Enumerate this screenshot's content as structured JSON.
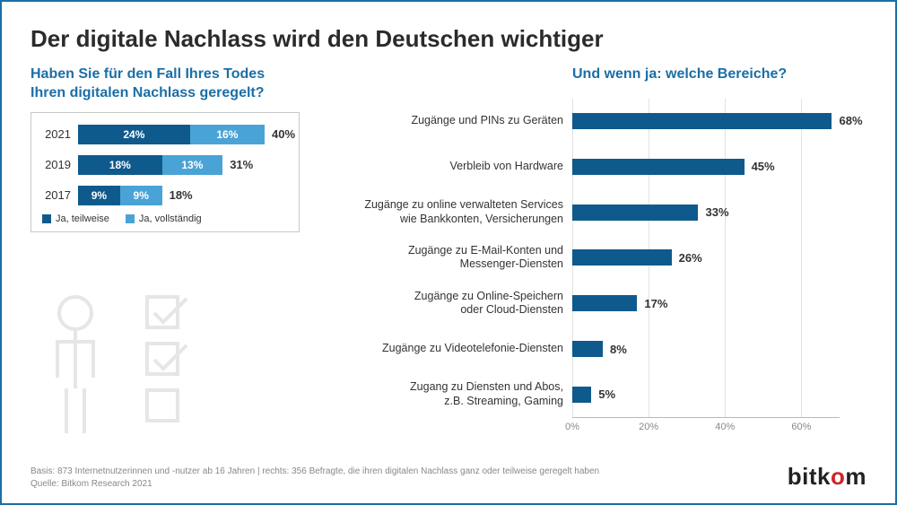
{
  "title": "Der digitale Nachlass wird den Deutschen wichtiger",
  "colors": {
    "border": "#1a6fa6",
    "accent": "#1a6fa6",
    "bar_dark": "#0f5a8c",
    "bar_light": "#4aa3d6",
    "grid": "#e2e2e2",
    "text": "#333333",
    "muted": "#888888",
    "logo_dark": "#222222",
    "logo_red": "#d2232a",
    "deco": "#e6e6e6"
  },
  "left_chart": {
    "question": "Haben Sie für den Fall Ihres Todes\nIhren digitalen Nachlass geregelt?",
    "max_pct": 45,
    "rows": [
      {
        "year": "2021",
        "partial": 24,
        "full": 16,
        "total": 40
      },
      {
        "year": "2019",
        "partial": 18,
        "full": 13,
        "total": 31
      },
      {
        "year": "2017",
        "partial": 9,
        "full": 9,
        "total": 18
      }
    ],
    "legend": [
      {
        "label": "Ja, teilweise",
        "color_key": "bar_dark"
      },
      {
        "label": "Ja, vollständig",
        "color_key": "bar_light"
      }
    ]
  },
  "right_chart": {
    "question": "Und wenn ja: welche Bereiche?",
    "max_pct": 70,
    "xticks": [
      0,
      20,
      40,
      60
    ],
    "bars": [
      {
        "label": "Zugänge und PINs zu Geräten",
        "value": 68
      },
      {
        "label": "Verbleib von Hardware",
        "value": 45
      },
      {
        "label": "Zugänge zu online verwalteten Services\nwie Bankkonten, Versicherungen",
        "value": 33
      },
      {
        "label": "Zugänge zu E-Mail-Konten und\nMessenger-Diensten",
        "value": 26
      },
      {
        "label": "Zugänge zu Online-Speichern\noder Cloud-Diensten",
        "value": 17
      },
      {
        "label": "Zugänge zu Videotelefonie-Diensten",
        "value": 8
      },
      {
        "label": "Zugang zu Diensten und Abos,\nz.B. Streaming, Gaming",
        "value": 5
      }
    ]
  },
  "footer": {
    "basis": "Basis: 873 Internetnutzerinnen und -nutzer ab 16 Jahren | rechts: 356 Befragte, die ihren digitalen Nachlass ganz oder teilweise geregelt haben",
    "source": "Quelle: Bitkom Research 2021",
    "logo_a": "bitk",
    "logo_b": "o",
    "logo_c": "m"
  }
}
